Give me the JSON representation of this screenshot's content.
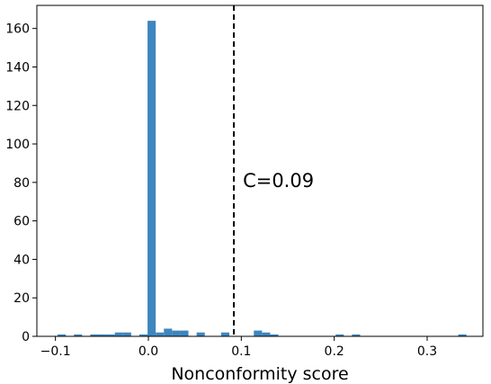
{
  "chart_data": {
    "type": "bar",
    "subtype": "histogram",
    "title": "",
    "xlabel": "Nonconformity score",
    "ylabel": "",
    "xlim": [
      -0.12,
      0.36
    ],
    "ylim": [
      0,
      172
    ],
    "x_ticks": [
      -0.1,
      0.0,
      0.1,
      0.2,
      0.3
    ],
    "x_tick_labels": [
      "−0.1",
      "0.0",
      "0.1",
      "0.2",
      "0.3"
    ],
    "y_ticks": [
      0,
      20,
      40,
      60,
      80,
      100,
      120,
      140,
      160
    ],
    "y_tick_labels": [
      "0",
      "20",
      "40",
      "60",
      "80",
      "100",
      "120",
      "140",
      "160"
    ],
    "bin_width": 0.0088,
    "bins": [
      {
        "x": -0.0977,
        "count": 1
      },
      {
        "x": -0.0801,
        "count": 1
      },
      {
        "x": -0.0625,
        "count": 1
      },
      {
        "x": -0.0537,
        "count": 1
      },
      {
        "x": -0.0449,
        "count": 1
      },
      {
        "x": -0.0361,
        "count": 2
      },
      {
        "x": -0.0273,
        "count": 2
      },
      {
        "x": -0.0097,
        "count": 1
      },
      {
        "x": -0.0009,
        "count": 164
      },
      {
        "x": 0.0079,
        "count": 2
      },
      {
        "x": 0.0167,
        "count": 4
      },
      {
        "x": 0.0255,
        "count": 3
      },
      {
        "x": 0.0343,
        "count": 3
      },
      {
        "x": 0.0519,
        "count": 2
      },
      {
        "x": 0.0783,
        "count": 2
      },
      {
        "x": 0.1135,
        "count": 3
      },
      {
        "x": 0.1223,
        "count": 2
      },
      {
        "x": 0.1311,
        "count": 1
      },
      {
        "x": 0.2015,
        "count": 1
      },
      {
        "x": 0.2191,
        "count": 1
      },
      {
        "x": 0.3335,
        "count": 1
      }
    ],
    "threshold": {
      "x": 0.092,
      "style": "dashed",
      "label": "C=0.09"
    },
    "bar_color": "#3e86bf",
    "grid": false,
    "legend": "none"
  }
}
